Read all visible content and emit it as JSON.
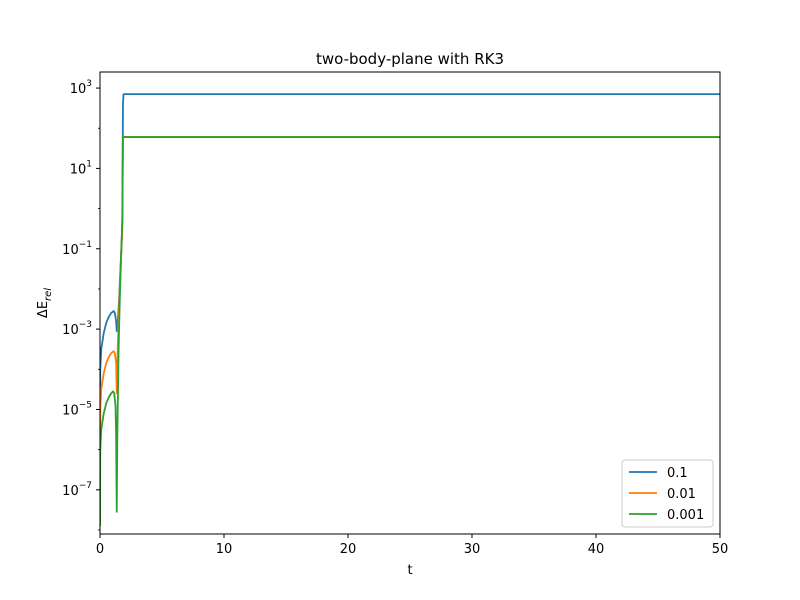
{
  "chart_data": {
    "type": "line",
    "title": "two-body-plane with RK3",
    "xlabel": "t",
    "ylabel_base": "ΔE",
    "ylabel_sub": "rel",
    "xlim": [
      0,
      50
    ],
    "ylim_log10": [
      -8.1,
      3.4
    ],
    "yscale": "log",
    "x_ticks": [
      0,
      10,
      20,
      30,
      40,
      50
    ],
    "x_tick_labels": [
      "0",
      "10",
      "20",
      "30",
      "40",
      "50"
    ],
    "y_ticks_log10": [
      3,
      1,
      -1,
      -3,
      -5,
      -7
    ],
    "y_tick_base": "10",
    "y_tick_exponents": [
      "3",
      "1",
      "−1",
      "−3",
      "−5",
      "−7"
    ],
    "legend_position": "lower-right",
    "series": [
      {
        "name": "0.1",
        "color": "#1f77b4",
        "points": [
          [
            0.0,
            -7.9
          ],
          [
            0.02,
            -4.0
          ],
          [
            0.1,
            -3.5
          ],
          [
            0.3,
            -3.1
          ],
          [
            0.5,
            -2.85
          ],
          [
            0.7,
            -2.7
          ],
          [
            0.9,
            -2.6
          ],
          [
            1.1,
            -2.55
          ],
          [
            1.2,
            -2.6
          ],
          [
            1.3,
            -2.8
          ],
          [
            1.35,
            -3.05
          ],
          [
            1.45,
            -2.75
          ],
          [
            1.55,
            -2.2
          ],
          [
            1.65,
            -1.5
          ],
          [
            1.75,
            -0.8
          ],
          [
            1.8,
            -0.3
          ],
          [
            1.85,
            2.6
          ],
          [
            1.9,
            2.85
          ],
          [
            50,
            2.85
          ]
        ]
      },
      {
        "name": "0.01",
        "color": "#ff7f0e",
        "points": [
          [
            0.0,
            -7.9
          ],
          [
            0.02,
            -5.0
          ],
          [
            0.1,
            -4.5
          ],
          [
            0.3,
            -4.1
          ],
          [
            0.5,
            -3.85
          ],
          [
            0.7,
            -3.7
          ],
          [
            0.9,
            -3.6
          ],
          [
            1.1,
            -3.55
          ],
          [
            1.2,
            -3.6
          ],
          [
            1.3,
            -3.85
          ],
          [
            1.35,
            -4.6
          ],
          [
            1.4,
            -3.8
          ],
          [
            1.5,
            -2.8
          ],
          [
            1.6,
            -2.0
          ],
          [
            1.7,
            -1.2
          ],
          [
            1.8,
            -0.5
          ],
          [
            1.85,
            1.78
          ],
          [
            50,
            1.78
          ]
        ]
      },
      {
        "name": "0.001",
        "color": "#2ca02c",
        "points": [
          [
            0.0,
            -7.9
          ],
          [
            0.02,
            -6.0
          ],
          [
            0.1,
            -5.5
          ],
          [
            0.3,
            -5.1
          ],
          [
            0.5,
            -4.85
          ],
          [
            0.7,
            -4.7
          ],
          [
            0.9,
            -4.6
          ],
          [
            1.05,
            -4.55
          ],
          [
            1.15,
            -4.6
          ],
          [
            1.25,
            -4.9
          ],
          [
            1.3,
            -5.6
          ],
          [
            1.35,
            -7.55
          ],
          [
            1.4,
            -5.6
          ],
          [
            1.5,
            -3.5
          ],
          [
            1.6,
            -2.2
          ],
          [
            1.7,
            -1.2
          ],
          [
            1.8,
            -0.3
          ],
          [
            1.85,
            1.78
          ],
          [
            50,
            1.78
          ]
        ]
      }
    ]
  }
}
